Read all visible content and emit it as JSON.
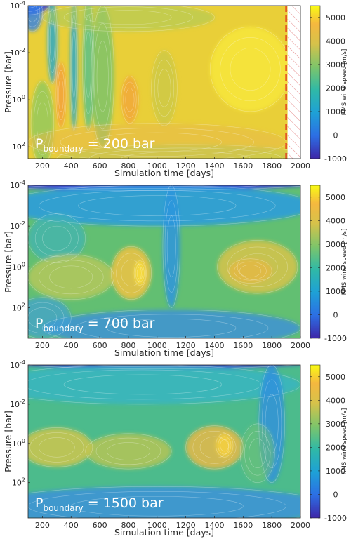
{
  "chart_data": [
    {
      "type": "heatmap",
      "annotation": {
        "base": "P",
        "sub": "boundary",
        "rest": " = 200 bar"
      },
      "xlabel": "Simulation time [days]",
      "ylabel": "Pressure [bar]",
      "xlim": [
        100,
        2000
      ],
      "xticks": [
        200,
        400,
        600,
        800,
        1000,
        1200,
        1400,
        1600,
        1800,
        2000
      ],
      "ylim_log10": [
        2.5,
        -4
      ],
      "yticks": [
        {
          "base": "10",
          "exp": "-4",
          "log": -4
        },
        {
          "base": "10",
          "exp": "-2",
          "log": -2
        },
        {
          "base": "10",
          "exp": "0",
          "log": 0
        },
        {
          "base": "10",
          "exp": "2",
          "log": 2
        }
      ],
      "colorbar": {
        "label": "RMS wind speed [m/s]",
        "min": -1000,
        "max": 5500,
        "ticks": [
          -1000,
          0,
          1000,
          2000,
          3000,
          4000,
          5000
        ]
      },
      "base_color": "#e9cf38",
      "blobs": [
        {
          "x": 100,
          "y": -4.2,
          "sx": 160,
          "sy": 0.6,
          "color": "#3d3fcf",
          "a": 0.9
        },
        {
          "x": 130,
          "y": -3.7,
          "sx": 70,
          "sy": 0.8,
          "color": "#2f7fe8",
          "a": 0.8
        },
        {
          "x": 270,
          "y": -2.5,
          "sx": 35,
          "sy": 1.8,
          "color": "#22a6ce",
          "a": 0.8
        },
        {
          "x": 420,
          "y": -1.5,
          "sx": 25,
          "sy": 2.8,
          "color": "#22a6ce",
          "a": 0.85
        },
        {
          "x": 520,
          "y": -1.5,
          "sx": 40,
          "sy": 2.8,
          "color": "#4fbf8e",
          "a": 0.8
        },
        {
          "x": 620,
          "y": -1.0,
          "sx": 80,
          "sy": 3.0,
          "color": "#7cc36a",
          "a": 0.85
        },
        {
          "x": 200,
          "y": 1.0,
          "sx": 80,
          "sy": 1.8,
          "color": "#8fc95e",
          "a": 0.8
        },
        {
          "x": 800,
          "y": -3.5,
          "sx": 600,
          "sy": 0.6,
          "color": "#aac95a",
          "a": 0.6
        },
        {
          "x": 1050,
          "y": -0.5,
          "sx": 90,
          "sy": 1.6,
          "color": "#c8c84a",
          "a": 0.7
        },
        {
          "x": 330,
          "y": -0.2,
          "sx": 35,
          "sy": 1.4,
          "color": "#f3a33a",
          "a": 0.9
        },
        {
          "x": 810,
          "y": 0.0,
          "sx": 60,
          "sy": 1.0,
          "color": "#f3a33a",
          "a": 0.75
        },
        {
          "x": 1650,
          "y": -1.3,
          "sx": 280,
          "sy": 1.8,
          "color": "#f6e53a",
          "a": 0.9
        },
        {
          "x": 1000,
          "y": 1.8,
          "sx": 900,
          "sy": 0.8,
          "color": "#e7b84a",
          "a": 0.5
        },
        {
          "x": 1200,
          "y": 2.5,
          "sx": 900,
          "sy": 0.6,
          "color": "#b8c85a",
          "a": 0.5
        }
      ],
      "boundary_line_x": 1900,
      "hatch_start_x": 1910
    },
    {
      "type": "heatmap",
      "annotation": {
        "base": "P",
        "sub": "boundary",
        "rest": " = 700 bar"
      },
      "xlabel": "Simulation time [days]",
      "ylabel": "Pressure [bar]",
      "xlim": [
        100,
        2000
      ],
      "xticks": [
        200,
        400,
        600,
        800,
        1000,
        1200,
        1400,
        1600,
        1800,
        2000
      ],
      "ylim_log10": [
        3.5,
        -4
      ],
      "yticks": [
        {
          "base": "10",
          "exp": "-4",
          "log": -4
        },
        {
          "base": "10",
          "exp": "-2",
          "log": -2
        },
        {
          "base": "10",
          "exp": "0",
          "log": 0
        },
        {
          "base": "10",
          "exp": "2",
          "log": 2
        }
      ],
      "colorbar": {
        "label": "RMS wind speed [m/s]",
        "min": -1000,
        "max": 5500,
        "ticks": [
          -1000,
          0,
          1000,
          2000,
          3000,
          4000,
          5000
        ]
      },
      "base_color": "#62bf72",
      "blobs": [
        {
          "x": 900,
          "y": -4.1,
          "sx": 1200,
          "sy": 0.35,
          "color": "#3e48d6",
          "a": 0.95
        },
        {
          "x": 1000,
          "y": -3.0,
          "sx": 1100,
          "sy": 1.0,
          "color": "#2a9be0",
          "a": 0.85
        },
        {
          "x": 300,
          "y": -1.4,
          "sx": 200,
          "sy": 1.2,
          "color": "#3fb2b8",
          "a": 0.7
        },
        {
          "x": 1100,
          "y": -1.0,
          "sx": 60,
          "sy": 3.0,
          "color": "#2d95dd",
          "a": 0.85
        },
        {
          "x": 1100,
          "y": 3.0,
          "sx": 900,
          "sy": 0.9,
          "color": "#3a8ce2",
          "a": 0.75
        },
        {
          "x": 400,
          "y": 0.5,
          "sx": 300,
          "sy": 1.1,
          "color": "#b9c85a",
          "a": 0.8
        },
        {
          "x": 820,
          "y": 0.3,
          "sx": 140,
          "sy": 1.3,
          "color": "#e8c247",
          "a": 0.9
        },
        {
          "x": 880,
          "y": 0.3,
          "sx": 40,
          "sy": 0.6,
          "color": "#f7dc3e",
          "a": 0.9
        },
        {
          "x": 1700,
          "y": 0.0,
          "sx": 280,
          "sy": 1.3,
          "color": "#d7c34a",
          "a": 0.85
        },
        {
          "x": 1650,
          "y": 0.2,
          "sx": 150,
          "sy": 0.6,
          "color": "#e9b841",
          "a": 0.7
        },
        {
          "x": 200,
          "y": 2.5,
          "sx": 200,
          "sy": 1.0,
          "color": "#3f9fd6",
          "a": 0.7
        }
      ]
    },
    {
      "type": "heatmap",
      "annotation": {
        "base": "P",
        "sub": "boundary",
        "rest": " = 1500 bar"
      },
      "xlabel": "Simulation time [days]",
      "ylabel": "Pressure [bar]",
      "xlim": [
        100,
        2000
      ],
      "xticks": [
        200,
        400,
        600,
        800,
        1000,
        1200,
        1400,
        1600,
        1800,
        2000
      ],
      "ylim_log10": [
        3.8,
        -4
      ],
      "yticks": [
        {
          "base": "10",
          "exp": "-4",
          "log": -4
        },
        {
          "base": "10",
          "exp": "-2",
          "log": -2
        },
        {
          "base": "10",
          "exp": "0",
          "log": 0
        },
        {
          "base": "10",
          "exp": "2",
          "log": 2
        }
      ],
      "colorbar": {
        "label": "RMS wind speed [m/s]",
        "min": -1000,
        "max": 5500,
        "ticks": [
          -1000,
          0,
          1000,
          2000,
          3000,
          4000,
          5000
        ]
      },
      "base_color": "#4cbb8c",
      "blobs": [
        {
          "x": 1000,
          "y": -4.2,
          "sx": 1100,
          "sy": 0.4,
          "color": "#3e45cf",
          "a": 0.95
        },
        {
          "x": 900,
          "y": -3.0,
          "sx": 1100,
          "sy": 1.0,
          "color": "#37b4c8",
          "a": 0.75
        },
        {
          "x": 1800,
          "y": -1.0,
          "sx": 90,
          "sy": 3.0,
          "color": "#2e8fdf",
          "a": 0.8
        },
        {
          "x": 1000,
          "y": 3.2,
          "sx": 1200,
          "sy": 1.0,
          "color": "#3b8fdd",
          "a": 0.8
        },
        {
          "x": 300,
          "y": 0.2,
          "sx": 250,
          "sy": 1.0,
          "color": "#d6c64a",
          "a": 0.8
        },
        {
          "x": 800,
          "y": 0.4,
          "sx": 300,
          "sy": 0.9,
          "color": "#c3c64f",
          "a": 0.75
        },
        {
          "x": 1400,
          "y": 0.2,
          "sx": 200,
          "sy": 1.1,
          "color": "#e7b948",
          "a": 0.85
        },
        {
          "x": 1470,
          "y": 0.1,
          "sx": 60,
          "sy": 0.6,
          "color": "#f4d13f",
          "a": 0.85
        },
        {
          "x": 1700,
          "y": 0.5,
          "sx": 120,
          "sy": 1.5,
          "color": "#6fc276",
          "a": 0.6
        }
      ]
    }
  ]
}
